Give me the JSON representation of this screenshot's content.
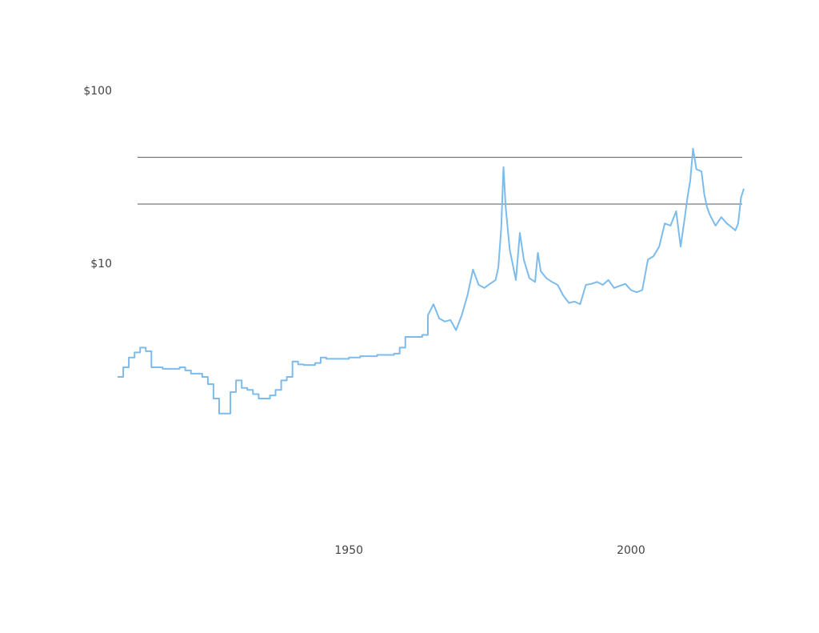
{
  "chart_data": {
    "type": "line",
    "title": "",
    "xlabel": "",
    "ylabel": "",
    "y_scale": "log",
    "ylim": [
      1.3,
      100
    ],
    "xlim": [
      1909,
      2020
    ],
    "grid": false,
    "legend": "none",
    "colors": {
      "line": "#7cbcec",
      "reference": "#555555"
    },
    "x_ticks": [
      {
        "value": 1950,
        "label": "1950"
      },
      {
        "value": 2000,
        "label": "2000"
      }
    ],
    "y_ticks": [
      {
        "value": 100,
        "label": "$100"
      },
      {
        "value": 10,
        "label": "$10"
      }
    ],
    "reference_lines": [
      41,
      22
    ],
    "series": [
      {
        "values": [
          [
            1909,
            2.2
          ],
          [
            1910,
            2.2
          ],
          [
            1910,
            2.5
          ],
          [
            1911,
            2.5
          ],
          [
            1911,
            2.85
          ],
          [
            1912,
            2.85
          ],
          [
            1912,
            3.05
          ],
          [
            1913,
            3.05
          ],
          [
            1913,
            3.25
          ],
          [
            1914,
            3.25
          ],
          [
            1914,
            3.1
          ],
          [
            1915,
            3.1
          ],
          [
            1915,
            2.5
          ],
          [
            1917,
            2.5
          ],
          [
            1917,
            2.45
          ],
          [
            1920,
            2.45
          ],
          [
            1920,
            2.5
          ],
          [
            1921,
            2.5
          ],
          [
            1921,
            2.4
          ],
          [
            1922,
            2.4
          ],
          [
            1922,
            2.3
          ],
          [
            1924,
            2.3
          ],
          [
            1924,
            2.2
          ],
          [
            1925,
            2.2
          ],
          [
            1925,
            2.0
          ],
          [
            1926,
            2.0
          ],
          [
            1926,
            1.65
          ],
          [
            1927,
            1.65
          ],
          [
            1927,
            1.35
          ],
          [
            1928,
            1.35
          ],
          [
            1928,
            1.35
          ],
          [
            1929,
            1.35
          ],
          [
            1929,
            1.8
          ],
          [
            1930,
            1.8
          ],
          [
            1930,
            2.1
          ],
          [
            1931,
            2.1
          ],
          [
            1931,
            1.9
          ],
          [
            1932,
            1.9
          ],
          [
            1932,
            1.85
          ],
          [
            1933,
            1.85
          ],
          [
            1933,
            1.75
          ],
          [
            1934,
            1.75
          ],
          [
            1934,
            1.65
          ],
          [
            1936,
            1.65
          ],
          [
            1936,
            1.72
          ],
          [
            1937,
            1.72
          ],
          [
            1937,
            1.85
          ],
          [
            1938,
            1.85
          ],
          [
            1938,
            2.1
          ],
          [
            1939,
            2.1
          ],
          [
            1939,
            2.2
          ],
          [
            1940,
            2.2
          ],
          [
            1940,
            2.7
          ],
          [
            1941,
            2.7
          ],
          [
            1941,
            2.6
          ],
          [
            1942,
            2.6
          ],
          [
            1942,
            2.58
          ],
          [
            1944,
            2.58
          ],
          [
            1944,
            2.65
          ],
          [
            1945,
            2.65
          ],
          [
            1945,
            2.85
          ],
          [
            1946,
            2.85
          ],
          [
            1946,
            2.8
          ],
          [
            1950,
            2.8
          ],
          [
            1950,
            2.85
          ],
          [
            1952,
            2.85
          ],
          [
            1952,
            2.9
          ],
          [
            1955,
            2.9
          ],
          [
            1955,
            2.95
          ],
          [
            1958,
            2.95
          ],
          [
            1958,
            3.0
          ],
          [
            1959,
            3.0
          ],
          [
            1959,
            3.25
          ],
          [
            1960,
            3.25
          ],
          [
            1960,
            3.75
          ],
          [
            1963,
            3.75
          ],
          [
            1963,
            3.85
          ],
          [
            1964,
            3.85
          ],
          [
            1964,
            5.0
          ],
          [
            1965,
            5.8
          ],
          [
            1966,
            4.8
          ],
          [
            1967,
            4.6
          ],
          [
            1968,
            4.7
          ],
          [
            1969,
            4.1
          ],
          [
            1970,
            5.0
          ],
          [
            1971,
            6.5
          ],
          [
            1972,
            9.2
          ],
          [
            1973,
            7.5
          ],
          [
            1974,
            7.2
          ],
          [
            1975,
            7.6
          ],
          [
            1976,
            8.0
          ],
          [
            1976.5,
            9.5
          ],
          [
            1977,
            16.0
          ],
          [
            1977.4,
            36.0
          ],
          [
            1977.8,
            21.0
          ],
          [
            1978.5,
            12.0
          ],
          [
            1979,
            10.0
          ],
          [
            1979.6,
            8.0
          ],
          [
            1980.3,
            15.0
          ],
          [
            1981,
            10.5
          ],
          [
            1982,
            8.2
          ],
          [
            1983,
            7.8
          ],
          [
            1983.5,
            11.5
          ],
          [
            1984,
            9.0
          ],
          [
            1985,
            8.2
          ],
          [
            1986,
            7.8
          ],
          [
            1987,
            7.5
          ],
          [
            1988,
            6.5
          ],
          [
            1989,
            5.9
          ],
          [
            1990,
            6.0
          ],
          [
            1991,
            5.8
          ],
          [
            1992,
            7.5
          ],
          [
            1993,
            7.6
          ],
          [
            1994,
            7.8
          ],
          [
            1995,
            7.5
          ],
          [
            1996,
            8.0
          ],
          [
            1997,
            7.2
          ],
          [
            1998,
            7.4
          ],
          [
            1999,
            7.6
          ],
          [
            2000,
            7.0
          ],
          [
            2001,
            6.8
          ],
          [
            2002,
            7.0
          ],
          [
            2003,
            10.5
          ],
          [
            2004,
            11.0
          ],
          [
            2005,
            12.5
          ],
          [
            2006,
            17.0
          ],
          [
            2007,
            16.5
          ],
          [
            2008,
            20.0
          ],
          [
            2008.8,
            12.5
          ],
          [
            2009.5,
            18.0
          ],
          [
            2010,
            24.0
          ],
          [
            2010.5,
            30.0
          ],
          [
            2011,
            46.0
          ],
          [
            2011.6,
            35.0
          ],
          [
            2012.5,
            34.0
          ],
          [
            2013,
            25.0
          ],
          [
            2013.5,
            21.0
          ],
          [
            2014,
            19.0
          ],
          [
            2015,
            16.5
          ],
          [
            2016,
            18.5
          ],
          [
            2017,
            17.0
          ],
          [
            2018,
            16.0
          ],
          [
            2018.5,
            15.5
          ],
          [
            2019,
            17.0
          ],
          [
            2019.5,
            24.0
          ],
          [
            2020,
            27.0
          ]
        ]
      }
    ]
  }
}
